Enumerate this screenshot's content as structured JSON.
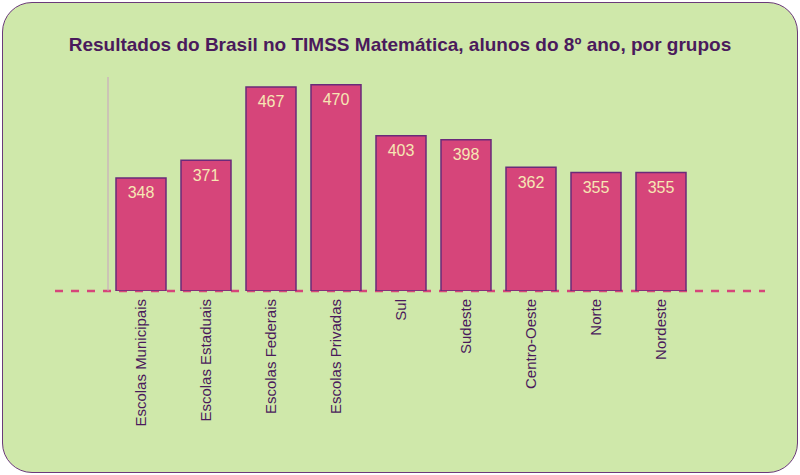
{
  "chart_data": {
    "type": "bar",
    "title": "Resultados do Brasil no TIMSS Matemática, alunos do 8º ano, por grupos",
    "categories": [
      "Escolas Municipais",
      "Escolas Estaduais",
      "Escolas Federais",
      "Escolas Privadas",
      "Sul",
      "Sudeste",
      "Centro-Oeste",
      "Norte",
      "Nordeste"
    ],
    "values": [
      348,
      371,
      467,
      470,
      403,
      398,
      362,
      355,
      355
    ],
    "color": "#d6457a",
    "ylim": [
      200,
      480
    ],
    "data_labels": true,
    "tick_labels": "x",
    "grid": false
  }
}
